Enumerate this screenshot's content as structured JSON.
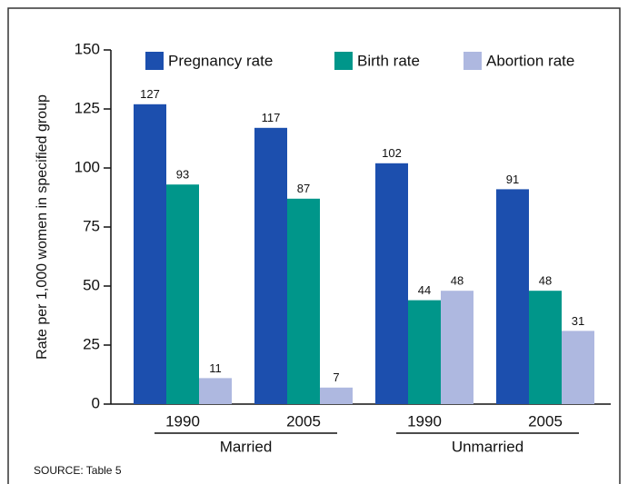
{
  "chart_data": {
    "type": "bar",
    "y_label": "Rate per 1,000 women in specified group",
    "categories": [
      "1990",
      "2005",
      "1990",
      "2005"
    ],
    "groups": [
      "Married",
      "Unmarried"
    ],
    "series": [
      {
        "name": "Pregnancy rate",
        "color": "#1c4fae",
        "values": [
          127,
          117,
          102,
          91
        ]
      },
      {
        "name": "Birth rate",
        "color": "#00968a",
        "values": [
          93,
          87,
          44,
          48
        ]
      },
      {
        "name": "Abortion rate",
        "color": "#aeb8e0",
        "values": [
          11,
          7,
          48,
          31
        ]
      }
    ],
    "ylim": [
      0,
      150
    ],
    "yticks": [
      0,
      25,
      50,
      75,
      100,
      125,
      150
    ],
    "source": "SOURCE: Table 5"
  }
}
